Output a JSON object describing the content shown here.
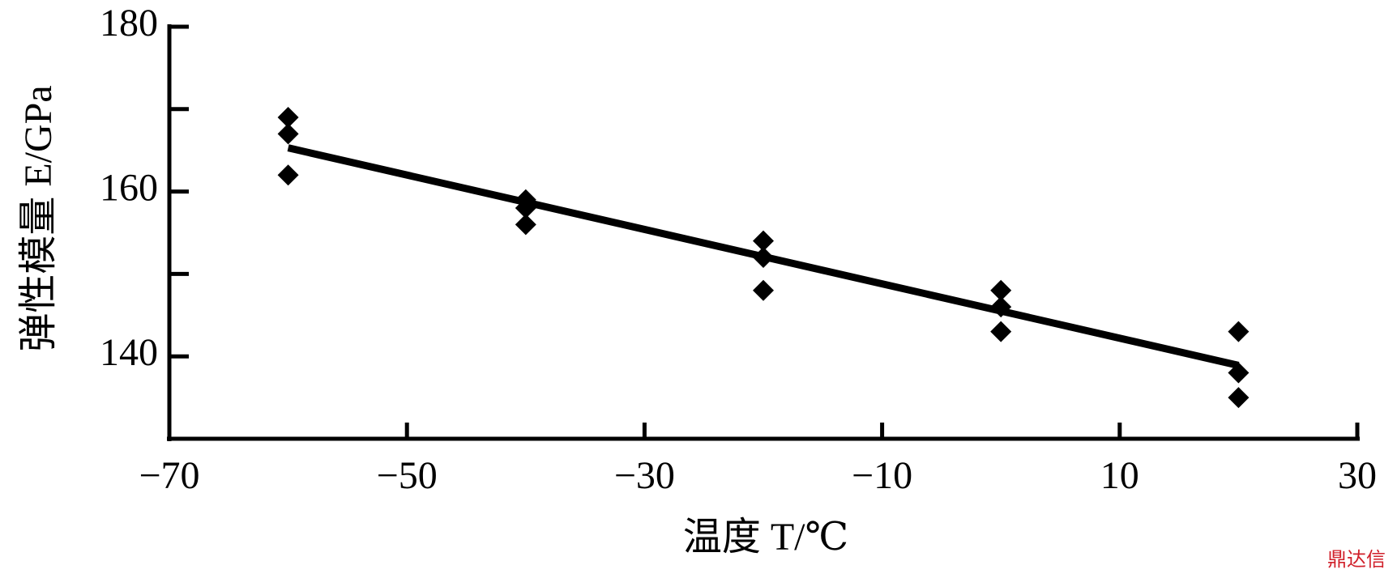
{
  "chart_data": {
    "type": "scatter",
    "xlabel": "温度 T/℃",
    "ylabel": "弹性模量 E/GPa",
    "watermark": "鼎达信",
    "xlim": [
      -70,
      30
    ],
    "xticks": [
      {
        "value": -70,
        "label": "−70"
      },
      {
        "value": -50,
        "label": "−50"
      },
      {
        "value": -30,
        "label": "−30"
      },
      {
        "value": -10,
        "label": "−10"
      },
      10,
      30
    ],
    "ylim": [
      130,
      180
    ],
    "yticks": [
      140,
      160,
      180
    ],
    "yminor_ticks": [
      150,
      170
    ],
    "color": "#000000",
    "series": [
      {
        "x": [
          -60,
          -60,
          -60,
          -40,
          -40,
          -40,
          -20,
          -20,
          -20,
          0,
          0,
          0,
          20,
          20,
          20
        ],
        "values": [
          169,
          167,
          162,
          159,
          158,
          156,
          154,
          152,
          148,
          148,
          146,
          143,
          143,
          138,
          135
        ]
      }
    ],
    "fit": {
      "x": [
        -60,
        20
      ],
      "values": [
        165.3,
        138.9
      ]
    }
  }
}
